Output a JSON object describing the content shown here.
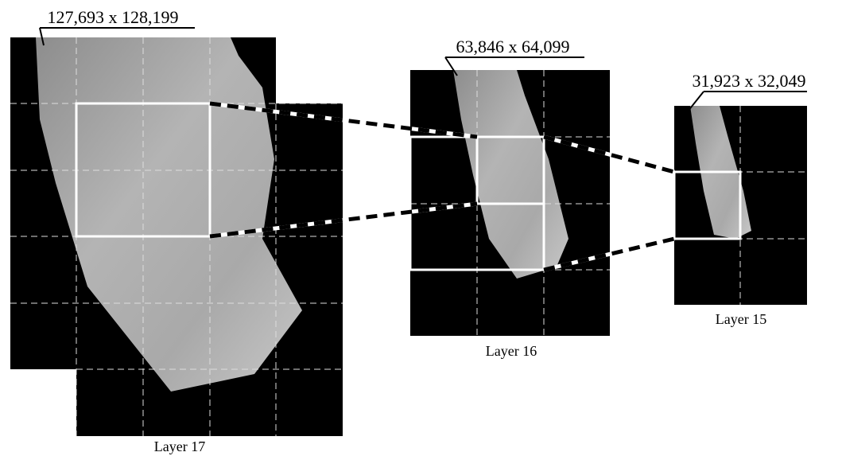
{
  "layers": [
    {
      "label": "Layer 17",
      "size": "127,693 x 128,199"
    },
    {
      "label": "Layer 16",
      "size": "63,846 x 64,099"
    },
    {
      "label": "Layer 15",
      "size": "31,923 x 32,049"
    }
  ]
}
